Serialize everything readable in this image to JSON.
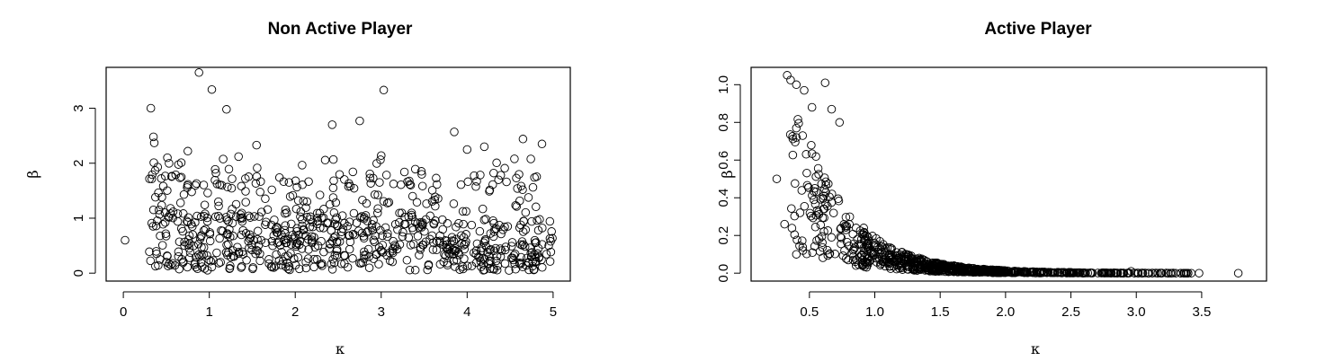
{
  "chart_data": [
    {
      "type": "scatter",
      "title": "Non Active Player",
      "xlabel": "κ",
      "ylabel": "β",
      "xlim": [
        0,
        5
      ],
      "ylim": [
        0,
        3.6
      ],
      "x_ticks": [
        "0",
        "1",
        "2",
        "3",
        "4",
        "5"
      ],
      "y_ticks": [
        "0",
        "1",
        "2",
        "3"
      ],
      "grid": false,
      "legend": "none",
      "marker": "open-circle",
      "highlighted_points": [
        {
          "x": 0.02,
          "y": 0.6
        },
        {
          "x": 0.32,
          "y": 3.0
        },
        {
          "x": 0.35,
          "y": 2.48
        },
        {
          "x": 0.36,
          "y": 2.37
        },
        {
          "x": 0.4,
          "y": 1.93
        },
        {
          "x": 0.88,
          "y": 3.65
        },
        {
          "x": 1.03,
          "y": 3.34
        },
        {
          "x": 1.2,
          "y": 2.98
        },
        {
          "x": 3.03,
          "y": 3.33
        },
        {
          "x": 2.43,
          "y": 2.7
        },
        {
          "x": 2.75,
          "y": 2.77
        },
        {
          "x": 3.85,
          "y": 2.57
        },
        {
          "x": 4.65,
          "y": 2.44
        },
        {
          "x": 4.87,
          "y": 2.35
        },
        {
          "x": 0.5,
          "y": 0.2
        },
        {
          "x": 0.52,
          "y": 0.13
        },
        {
          "x": 0.77,
          "y": 0.28
        },
        {
          "x": 0.75,
          "y": 2.22
        },
        {
          "x": 1.55,
          "y": 2.33
        },
        {
          "x": 1.34,
          "y": 2.12
        },
        {
          "x": 3.0,
          "y": 2.14
        },
        {
          "x": 4.0,
          "y": 2.25
        },
        {
          "x": 4.2,
          "y": 2.3
        },
        {
          "x": 4.55,
          "y": 2.08
        }
      ],
      "cloud": {
        "n": 780,
        "x_range": [
          0.3,
          5.0
        ],
        "y_distribution": "dense 0–1.1, sparser up to ~2.0",
        "seed": 7
      }
    },
    {
      "type": "scatter",
      "title": "Active Player",
      "xlabel": "κ",
      "ylabel": "β",
      "xlim": [
        0.2,
        3.85
      ],
      "ylim": [
        0,
        1.05
      ],
      "x_ticks": [
        "0.5",
        "1.0",
        "1.5",
        "2.0",
        "2.5",
        "3.0",
        "3.5"
      ],
      "y_ticks": [
        "0.0",
        "0.2",
        "0.4",
        "0.6",
        "0.8",
        "1.0"
      ],
      "grid": false,
      "legend": "none",
      "marker": "open-circle",
      "highlighted_points": [
        {
          "x": 0.25,
          "y": 0.5
        },
        {
          "x": 0.31,
          "y": 0.26
        },
        {
          "x": 0.33,
          "y": 1.05
        },
        {
          "x": 0.4,
          "y": 1.0
        },
        {
          "x": 0.46,
          "y": 0.97
        },
        {
          "x": 0.62,
          "y": 1.01
        },
        {
          "x": 0.67,
          "y": 0.87
        },
        {
          "x": 0.73,
          "y": 0.8
        },
        {
          "x": 0.52,
          "y": 0.88
        },
        {
          "x": 0.4,
          "y": 0.77
        },
        {
          "x": 0.4,
          "y": 0.72
        },
        {
          "x": 0.4,
          "y": 0.1
        },
        {
          "x": 0.45,
          "y": 0.12
        },
        {
          "x": 3.78,
          "y": 0.0
        },
        {
          "x": 3.48,
          "y": 0.0
        },
        {
          "x": 3.42,
          "y": 0.0
        },
        {
          "x": 3.27,
          "y": 0.0
        },
        {
          "x": 3.05,
          "y": 0.0
        },
        {
          "x": 2.96,
          "y": 0.01
        }
      ],
      "cloud": {
        "n": 900,
        "x_range": [
          0.3,
          3.4
        ],
        "y_distribution": "exponential decay from ~0.8 at 0.4 to 0 by 2.5",
        "seed": 11
      }
    }
  ]
}
